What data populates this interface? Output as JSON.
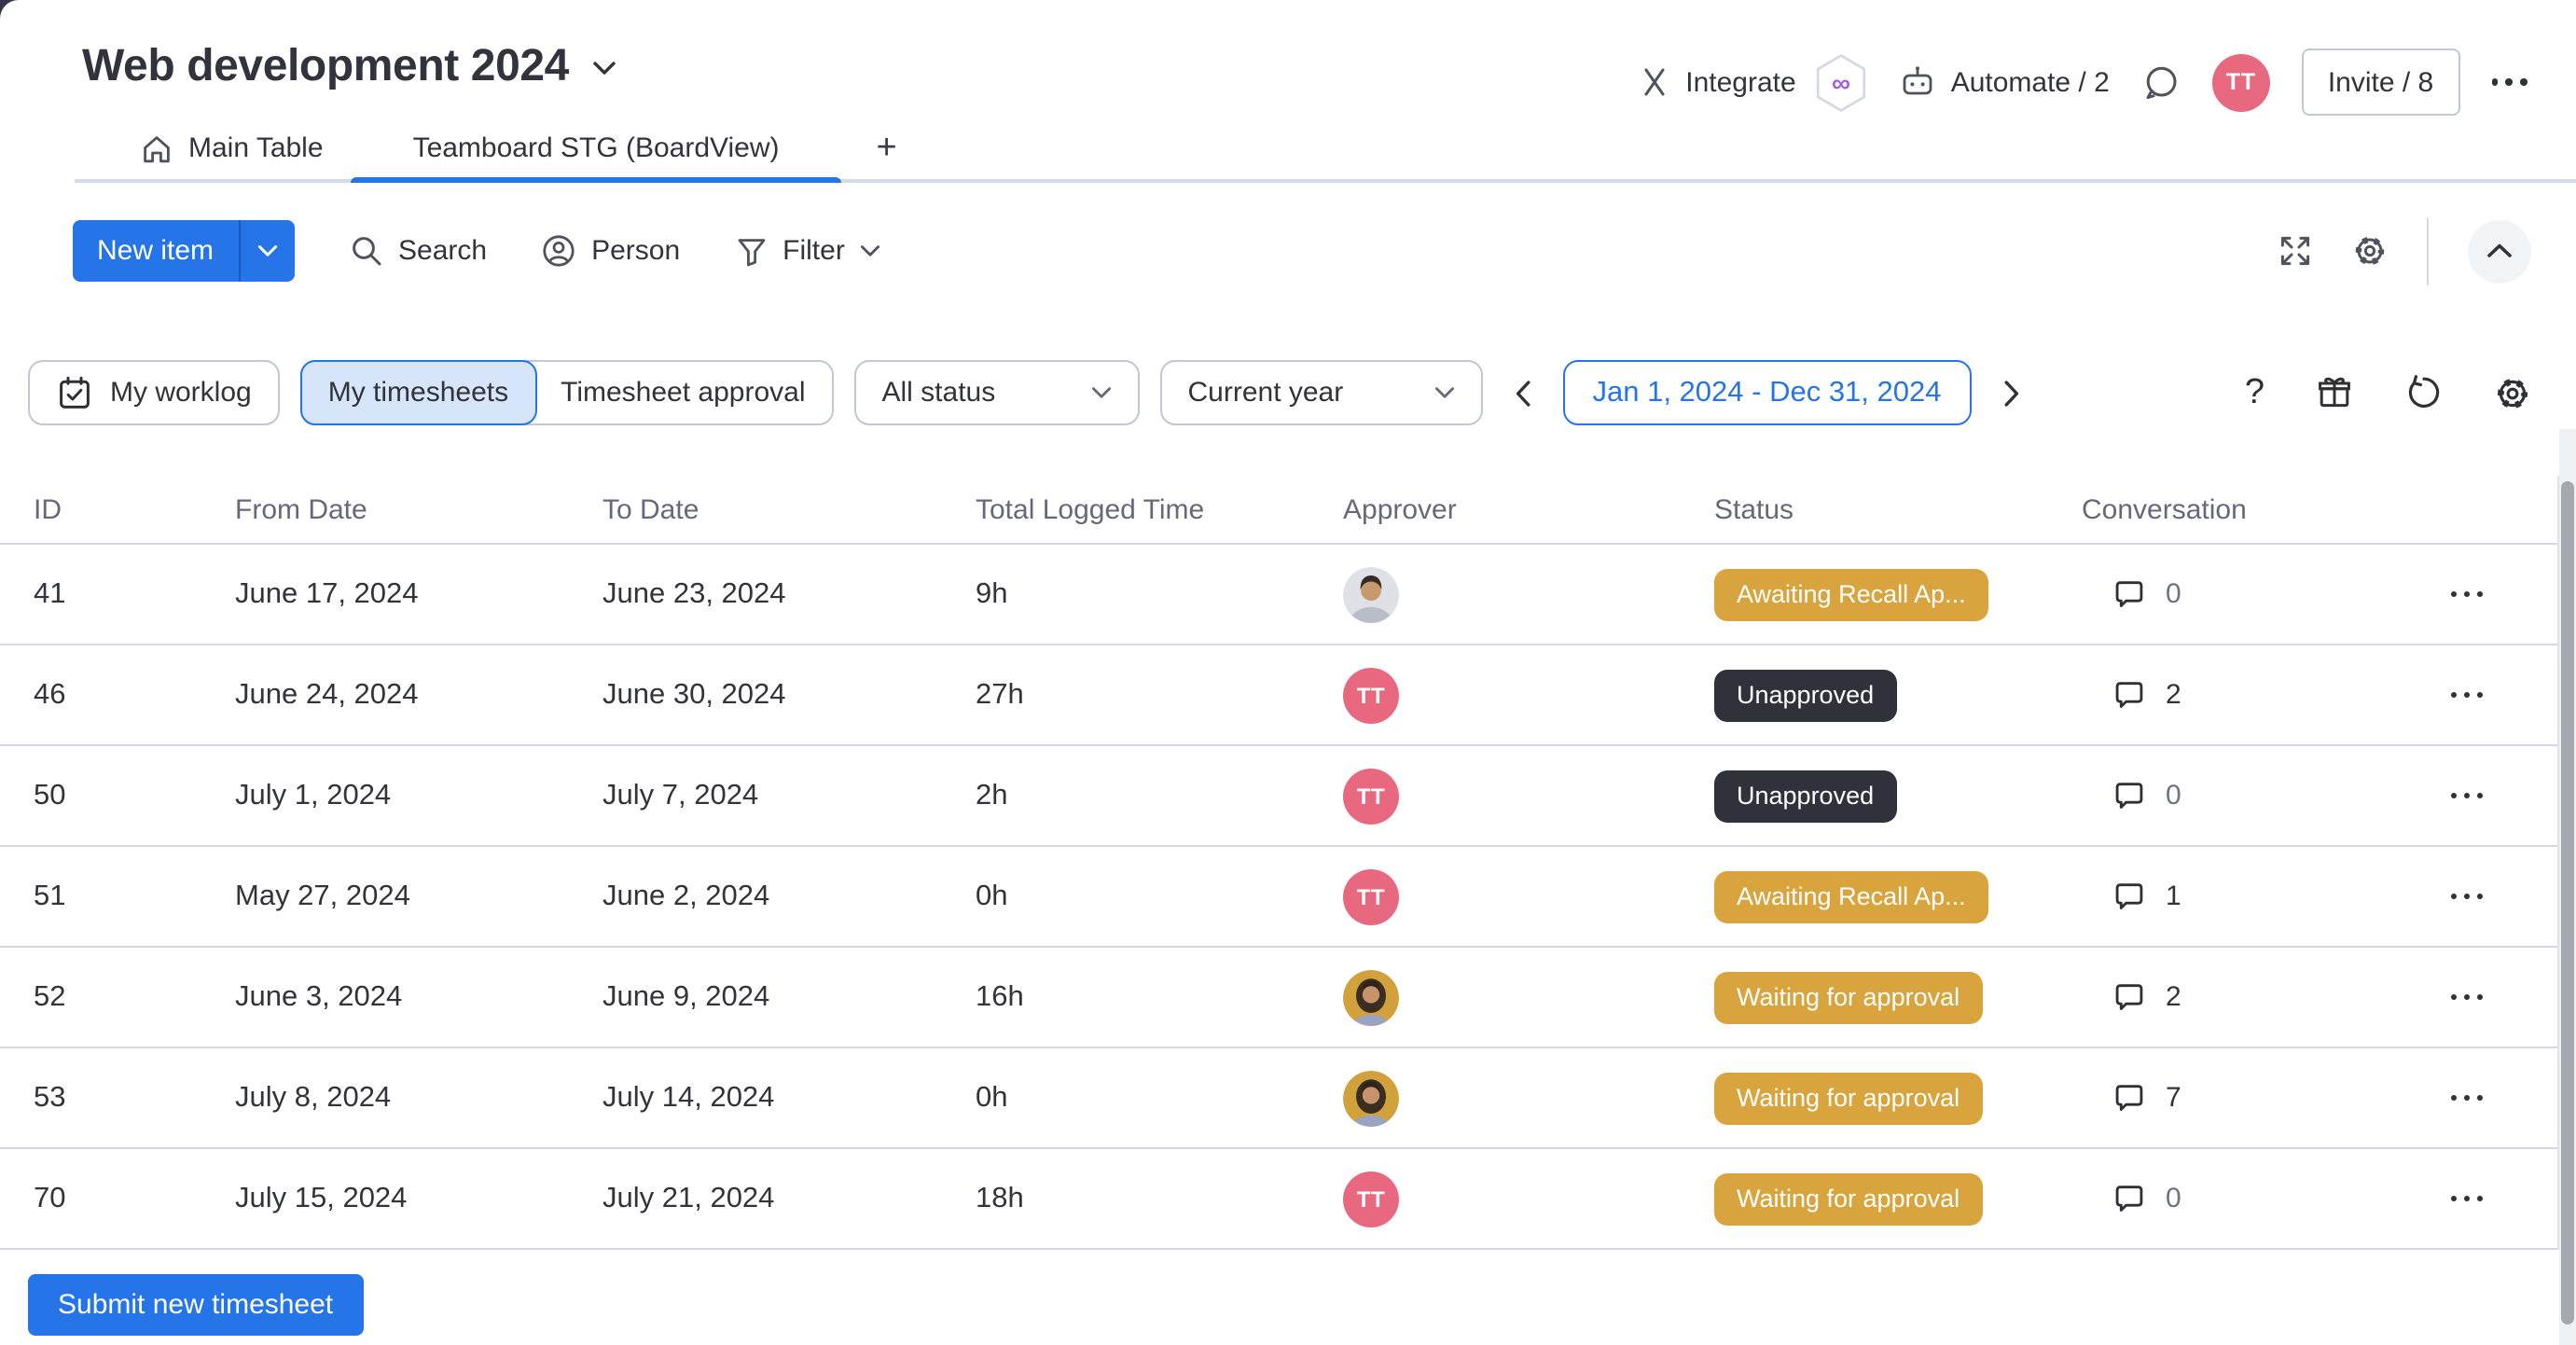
{
  "colors": {
    "accent": "#2575e8",
    "accent_light": "#d7e5fa",
    "status_yellow": "#d9a43d",
    "status_dark": "#30323b",
    "avatar_pink": "#e8697f",
    "divider": "#d4d7e5",
    "muted_text": "#676879"
  },
  "header": {
    "board_title": "Web development 2024",
    "integrate_label": "Integrate",
    "integrations_badge": "∞",
    "automate_label": "Automate / 2",
    "invite_label": "Invite / 8",
    "avatar_initials": "TT"
  },
  "tabs": {
    "main_table": "Main Table",
    "board_view": "Teamboard STG (BoardView)",
    "add_view": "+"
  },
  "toolbar": {
    "new_item": "New item",
    "search": "Search",
    "person": "Person",
    "filter": "Filter"
  },
  "filters": {
    "my_worklog": "My worklog",
    "my_timesheets": "My timesheets",
    "timesheet_approval": "Timesheet approval",
    "status_select": "All status",
    "period_select": "Current year",
    "date_range": "Jan 1, 2024 - Dec 31, 2024",
    "help": "?"
  },
  "table": {
    "columns": [
      "ID",
      "From Date",
      "To Date",
      "Total Logged Time",
      "Approver",
      "Status",
      "Conversation"
    ],
    "rows": [
      {
        "id": "41",
        "from_date": "June 17, 2024",
        "to_date": "June 23, 2024",
        "total_logged": "9h",
        "approver": {
          "kind": "photo",
          "variant": "man"
        },
        "status": {
          "label": "Awaiting Recall Ap...",
          "tone": "yellow"
        },
        "conversation_count": "0"
      },
      {
        "id": "46",
        "from_date": "June 24, 2024",
        "to_date": "June 30, 2024",
        "total_logged": "27h",
        "approver": {
          "kind": "initials",
          "text": "TT"
        },
        "status": {
          "label": "Unapproved",
          "tone": "dark"
        },
        "conversation_count": "2"
      },
      {
        "id": "50",
        "from_date": "July 1, 2024",
        "to_date": "July 7, 2024",
        "total_logged": "2h",
        "approver": {
          "kind": "initials",
          "text": "TT"
        },
        "status": {
          "label": "Unapproved",
          "tone": "dark"
        },
        "conversation_count": "0"
      },
      {
        "id": "51",
        "from_date": "May 27, 2024",
        "to_date": "June 2, 2024",
        "total_logged": "0h",
        "approver": {
          "kind": "initials",
          "text": "TT"
        },
        "status": {
          "label": "Awaiting Recall Ap...",
          "tone": "yellow"
        },
        "conversation_count": "1"
      },
      {
        "id": "52",
        "from_date": "June 3, 2024",
        "to_date": "June 9, 2024",
        "total_logged": "16h",
        "approver": {
          "kind": "photo",
          "variant": "woman"
        },
        "status": {
          "label": "Waiting for approval",
          "tone": "yellow"
        },
        "conversation_count": "2"
      },
      {
        "id": "53",
        "from_date": "July 8, 2024",
        "to_date": "July 14, 2024",
        "total_logged": "0h",
        "approver": {
          "kind": "photo",
          "variant": "woman"
        },
        "status": {
          "label": "Waiting for approval",
          "tone": "yellow"
        },
        "conversation_count": "7"
      },
      {
        "id": "70",
        "from_date": "July 15, 2024",
        "to_date": "July 21, 2024",
        "total_logged": "18h",
        "approver": {
          "kind": "initials",
          "text": "TT"
        },
        "status": {
          "label": "Waiting for approval",
          "tone": "yellow"
        },
        "conversation_count": "0"
      }
    ]
  },
  "footer": {
    "submit_label": "Submit new timesheet"
  },
  "icons": {
    "board-menu": "chevron-down",
    "integrate": "crossed-brackets",
    "integrations-badge": "hexagon-infinity",
    "automate": "robot",
    "chat": "speech-bubble",
    "more-menu": "ellipsis",
    "main-table": "home",
    "search": "magnifier",
    "person": "user-circle",
    "filter": "funnel",
    "fullscreen": "expand-arrows",
    "board-settings": "gear",
    "collapse": "chevron-up",
    "my-worklog": "calendar-check",
    "select": "chevron-down",
    "prev": "chevron-left",
    "next": "chevron-right",
    "help": "question-mark",
    "whats-new": "gift",
    "reset": "rotate-ccw",
    "widget-settings": "gear",
    "conversation": "speech-bubble",
    "row-menu": "ellipsis"
  }
}
